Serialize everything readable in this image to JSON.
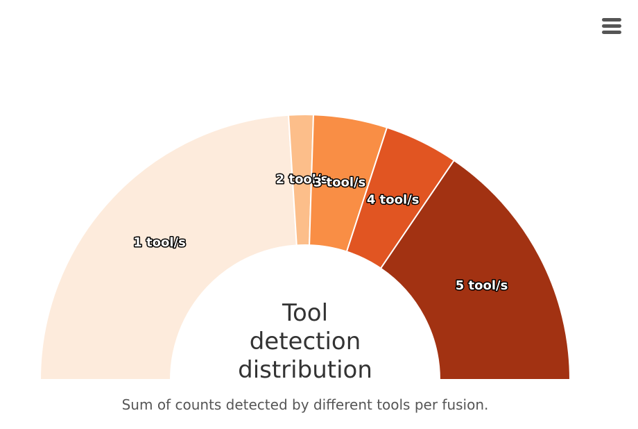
{
  "chart_data": {
    "type": "pie",
    "variant": "semicircle-donut",
    "title": "Tool detection distribution",
    "subtitle": "Sum of counts detected by different tools per fusion.",
    "categories": [
      "1 tool/s",
      "2 tool/s",
      "3 tool/s",
      "4 tool/s",
      "5 tool/s"
    ],
    "values": [
      48,
      3,
      9,
      9,
      31
    ],
    "colors": [
      "#fdebdc",
      "#fcbe8a",
      "#f98e45",
      "#e15522",
      "#a23212"
    ],
    "legend": "none"
  },
  "menu": {
    "icon": "hamburger-menu-icon"
  }
}
